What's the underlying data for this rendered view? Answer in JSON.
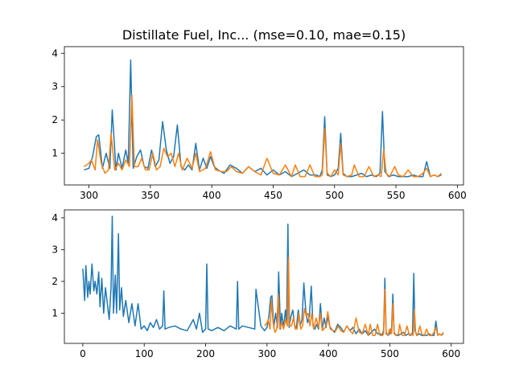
{
  "chart_data": [
    {
      "type": "line",
      "title": "Distillate Fuel, Inc... (mse=0.10, mae=0.15)",
      "xlim": [
        280,
        605
      ],
      "ylim": [
        0.05,
        4.2
      ],
      "xticks": [
        300,
        350,
        400,
        450,
        500,
        550,
        600
      ],
      "yticks": [
        1,
        2,
        3,
        4
      ],
      "series": [
        {
          "color": "#1f77b4",
          "x": [
            296,
            300,
            303,
            306,
            308,
            311,
            314,
            317,
            319,
            322,
            324,
            327,
            330,
            332,
            334,
            336,
            339,
            342,
            345,
            348,
            351,
            354,
            357,
            360,
            363,
            366,
            369,
            372,
            375,
            378,
            381,
            384,
            387,
            390,
            393,
            396,
            399,
            402,
            405,
            410,
            415,
            420,
            425,
            430,
            435,
            440,
            445,
            450,
            455,
            460,
            465,
            470,
            475,
            480,
            485,
            488,
            490,
            492,
            494,
            497,
            500,
            503,
            505,
            507,
            510,
            514,
            518,
            522,
            526,
            530,
            534,
            537,
            539,
            541,
            544,
            548,
            552,
            556,
            560,
            564,
            568,
            572,
            575,
            578,
            581,
            584,
            587
          ],
          "y": [
            0.5,
            0.55,
            0.9,
            1.5,
            1.55,
            0.55,
            1.0,
            0.55,
            2.3,
            0.5,
            1.0,
            0.55,
            1.1,
            0.7,
            3.8,
            0.55,
            0.9,
            1.1,
            0.6,
            0.55,
            1.1,
            0.6,
            0.8,
            1.95,
            1.1,
            0.7,
            0.9,
            1.85,
            0.6,
            0.5,
            0.65,
            0.5,
            1.3,
            0.5,
            0.85,
            0.55,
            0.9,
            0.6,
            0.5,
            0.4,
            0.65,
            0.55,
            0.4,
            0.6,
            0.45,
            0.55,
            0.35,
            0.5,
            0.35,
            0.45,
            0.3,
            0.4,
            0.5,
            0.35,
            0.35,
            0.3,
            0.5,
            2.1,
            0.35,
            0.3,
            0.35,
            0.55,
            1.6,
            0.4,
            0.3,
            0.3,
            0.35,
            0.4,
            0.3,
            0.35,
            0.3,
            0.4,
            2.25,
            0.45,
            0.3,
            0.35,
            0.3,
            0.3,
            0.3,
            0.35,
            0.3,
            0.3,
            0.75,
            0.3,
            0.35,
            0.3,
            0.35
          ]
        },
        {
          "color": "#ff7f0e",
          "x": [
            296,
            300,
            302,
            305,
            307,
            310,
            313,
            316,
            318,
            321,
            324,
            327,
            330,
            333,
            335,
            337,
            340,
            343,
            346,
            349,
            352,
            355,
            358,
            361,
            364,
            367,
            370,
            373,
            376,
            380,
            384,
            387,
            390,
            395,
            399,
            403,
            408,
            412,
            416,
            420,
            425,
            430,
            435,
            440,
            445,
            450,
            455,
            460,
            465,
            468,
            472,
            476,
            480,
            484,
            488,
            490,
            492,
            494,
            497,
            500,
            503,
            505,
            507,
            510,
            514,
            516,
            520,
            524,
            528,
            532,
            535,
            538,
            540,
            542,
            545,
            549,
            552,
            556,
            560,
            564,
            568,
            572,
            575,
            578,
            581,
            584,
            587
          ],
          "y": [
            0.6,
            0.7,
            0.8,
            0.5,
            1.4,
            0.7,
            0.4,
            0.5,
            1.6,
            0.5,
            0.7,
            0.5,
            0.8,
            0.6,
            2.75,
            0.6,
            0.6,
            0.85,
            0.5,
            0.5,
            1.0,
            0.5,
            0.6,
            1.15,
            0.9,
            1.0,
            0.6,
            1.0,
            0.5,
            0.85,
            0.55,
            1.0,
            0.45,
            0.55,
            1.05,
            0.5,
            0.45,
            0.45,
            0.6,
            0.45,
            0.4,
            0.6,
            0.45,
            0.35,
            0.85,
            0.4,
            0.35,
            0.65,
            0.3,
            0.65,
            0.3,
            0.3,
            0.65,
            0.3,
            0.3,
            0.35,
            1.75,
            0.4,
            0.3,
            0.5,
            0.35,
            1.3,
            0.35,
            0.3,
            0.35,
            0.65,
            0.3,
            0.3,
            0.6,
            0.3,
            0.35,
            0.3,
            1.1,
            0.4,
            0.3,
            0.6,
            0.35,
            0.3,
            0.5,
            0.3,
            0.3,
            0.4,
            0.55,
            0.3,
            0.35,
            0.3,
            0.4
          ]
        }
      ]
    },
    {
      "type": "line",
      "title": "",
      "xlim": [
        -30,
        620
      ],
      "ylim": [
        0.05,
        4.25
      ],
      "xticks": [
        0,
        100,
        200,
        300,
        400,
        500,
        600
      ],
      "yticks": [
        1,
        2,
        3,
        4
      ],
      "series": [
        {
          "color": "#1f77b4",
          "x": [
            0,
            3,
            5,
            8,
            10,
            12,
            15,
            18,
            20,
            23,
            26,
            28,
            31,
            34,
            37,
            40,
            43,
            46,
            48,
            50,
            53,
            55,
            58,
            60,
            63,
            66,
            70,
            75,
            80,
            85,
            90,
            95,
            100,
            105,
            110,
            115,
            120,
            125,
            130,
            132,
            134,
            140,
            150,
            160,
            170,
            180,
            185,
            190,
            195,
            200,
            202,
            204,
            210,
            220,
            230,
            240,
            250,
            252,
            254,
            260,
            270,
            280,
            282,
            290,
            296,
            300,
            303,
            306,
            308,
            311,
            314,
            317,
            319,
            322,
            324,
            327,
            330,
            332,
            334,
            336,
            339,
            342,
            345,
            348,
            351,
            354,
            357,
            360,
            363,
            366,
            369,
            372,
            375,
            378,
            381,
            384,
            387,
            390,
            393,
            396,
            399,
            402,
            405,
            410,
            415,
            420,
            425,
            430,
            435,
            440,
            445,
            450,
            455,
            460,
            465,
            470,
            475,
            480,
            485,
            488,
            490,
            492,
            494,
            497,
            500,
            503,
            505,
            507,
            510,
            514,
            518,
            522,
            526,
            530,
            534,
            537,
            539,
            541,
            544,
            548,
            552,
            556,
            560,
            564,
            568,
            572,
            575,
            578,
            581,
            584,
            587
          ],
          "y": [
            2.4,
            1.4,
            2.5,
            1.5,
            2.0,
            1.6,
            2.55,
            1.7,
            2.0,
            1.6,
            2.3,
            1.2,
            2.1,
            1.0,
            1.8,
            1.3,
            0.8,
            1.8,
            4.05,
            1.0,
            2.2,
            1.0,
            3.5,
            1.1,
            1.8,
            0.9,
            1.4,
            0.7,
            1.3,
            0.6,
            1.3,
            0.5,
            0.6,
            0.45,
            0.7,
            0.55,
            0.8,
            0.5,
            0.6,
            1.7,
            0.5,
            0.55,
            0.6,
            0.5,
            0.45,
            0.8,
            0.5,
            1.0,
            0.4,
            0.5,
            2.55,
            0.5,
            0.45,
            0.55,
            0.45,
            0.6,
            0.5,
            2.0,
            0.5,
            0.6,
            0.55,
            0.5,
            1.75,
            0.6,
            0.45,
            0.55,
            0.9,
            1.5,
            1.55,
            0.55,
            1.0,
            0.55,
            2.3,
            0.5,
            1.0,
            0.55,
            1.1,
            0.7,
            3.8,
            0.55,
            0.9,
            1.1,
            0.6,
            0.55,
            1.1,
            0.6,
            0.8,
            1.95,
            1.1,
            0.7,
            0.9,
            1.85,
            0.6,
            0.5,
            0.65,
            0.5,
            1.3,
            0.5,
            0.85,
            0.55,
            0.9,
            0.6,
            0.5,
            0.4,
            0.65,
            0.55,
            0.4,
            0.6,
            0.45,
            0.55,
            0.35,
            0.5,
            0.35,
            0.45,
            0.3,
            0.4,
            0.5,
            0.35,
            0.35,
            0.3,
            0.5,
            2.1,
            0.35,
            0.3,
            0.35,
            0.55,
            1.6,
            0.4,
            0.3,
            0.3,
            0.35,
            0.4,
            0.3,
            0.35,
            0.3,
            0.4,
            2.25,
            0.45,
            0.3,
            0.35,
            0.3,
            0.3,
            0.3,
            0.35,
            0.3,
            0.3,
            0.75,
            0.3,
            0.35,
            0.3,
            0.35
          ]
        },
        {
          "color": "#ff7f0e",
          "x": [
            296,
            300,
            302,
            305,
            307,
            310,
            313,
            316,
            318,
            321,
            324,
            327,
            330,
            333,
            335,
            337,
            340,
            343,
            346,
            349,
            352,
            355,
            358,
            361,
            364,
            367,
            370,
            373,
            376,
            380,
            384,
            387,
            390,
            395,
            399,
            403,
            408,
            412,
            416,
            420,
            425,
            430,
            435,
            440,
            445,
            450,
            455,
            460,
            465,
            468,
            472,
            476,
            480,
            484,
            488,
            490,
            492,
            494,
            497,
            500,
            503,
            505,
            507,
            510,
            514,
            516,
            520,
            524,
            528,
            532,
            535,
            538,
            540,
            542,
            545,
            549,
            552,
            556,
            560,
            564,
            568,
            572,
            575,
            578,
            581,
            584,
            587
          ],
          "y": [
            0.6,
            0.7,
            0.8,
            0.5,
            1.4,
            0.7,
            0.4,
            0.5,
            1.6,
            0.5,
            0.7,
            0.5,
            0.8,
            0.6,
            2.75,
            0.6,
            0.6,
            0.85,
            0.5,
            0.5,
            1.0,
            0.5,
            0.6,
            1.15,
            0.9,
            1.0,
            0.6,
            1.0,
            0.5,
            0.85,
            0.55,
            1.0,
            0.45,
            0.55,
            1.05,
            0.5,
            0.45,
            0.45,
            0.6,
            0.45,
            0.4,
            0.6,
            0.45,
            0.35,
            0.85,
            0.4,
            0.35,
            0.65,
            0.3,
            0.65,
            0.3,
            0.3,
            0.65,
            0.3,
            0.3,
            0.35,
            1.75,
            0.4,
            0.3,
            0.5,
            0.35,
            1.3,
            0.35,
            0.3,
            0.35,
            0.65,
            0.3,
            0.3,
            0.6,
            0.3,
            0.35,
            0.3,
            1.1,
            0.4,
            0.3,
            0.6,
            0.35,
            0.3,
            0.5,
            0.3,
            0.3,
            0.4,
            0.55,
            0.3,
            0.35,
            0.3,
            0.4
          ]
        }
      ]
    }
  ]
}
